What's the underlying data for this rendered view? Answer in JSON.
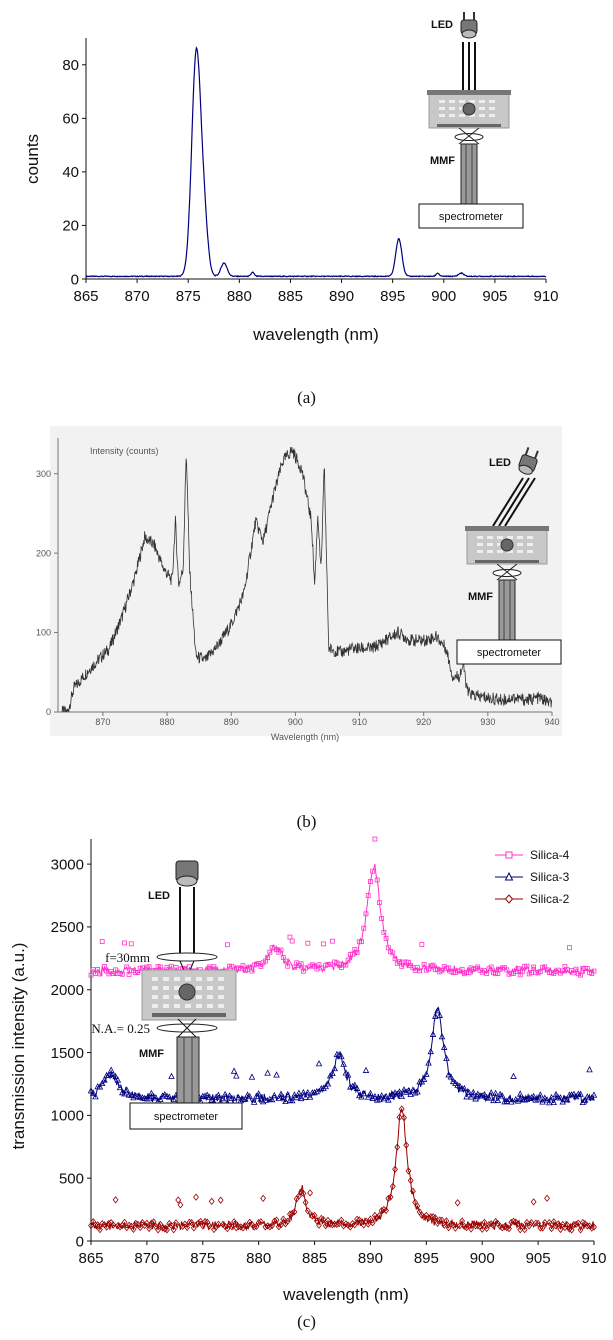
{
  "chart_data": [
    {
      "id": "a",
      "type": "line",
      "caption": "(a)",
      "xlabel": "wavelength (nm)",
      "ylabel": "counts",
      "xlim": [
        865,
        910
      ],
      "ylim": [
        0,
        90
      ],
      "xticks": [
        865,
        870,
        875,
        880,
        885,
        890,
        895,
        900,
        905,
        910
      ],
      "yticks": [
        0,
        20,
        40,
        60,
        80
      ],
      "color": "#000080",
      "baseline": 1,
      "peaks": [
        {
          "x": 875.8,
          "y": 84,
          "w": 0.45
        },
        {
          "x": 876.6,
          "y": 16,
          "w": 0.35
        },
        {
          "x": 878.5,
          "y": 5,
          "w": 0.3
        },
        {
          "x": 881.3,
          "y": 1.5,
          "w": 0.15
        },
        {
          "x": 895.6,
          "y": 14,
          "w": 0.3
        },
        {
          "x": 899.4,
          "y": 1.2,
          "w": 0.15
        },
        {
          "x": 901.7,
          "y": 1.2,
          "w": 0.25
        }
      ],
      "inset": {
        "led_label": "LED",
        "fiber_label": "MMF",
        "box_label": "spectrometer"
      }
    },
    {
      "id": "b",
      "type": "line",
      "caption": "(b)",
      "xlabel": "Wavelength (nm)",
      "ylabel": "Intensity (counts)",
      "xlim": [
        863,
        940
      ],
      "ylim": [
        0,
        345
      ],
      "xticks": [
        870,
        880,
        890,
        900,
        910,
        920,
        930,
        940
      ],
      "yticks": [
        0,
        100,
        200,
        300
      ],
      "color": "#333333",
      "points": [
        [
          863.5,
          0
        ],
        [
          864.5,
          0
        ],
        [
          865.5,
          30
        ],
        [
          868,
          55
        ],
        [
          871,
          80
        ],
        [
          873,
          120
        ],
        [
          875,
          170
        ],
        [
          876.5,
          220
        ],
        [
          878,
          210
        ],
        [
          879.5,
          180
        ],
        [
          880.8,
          165
        ],
        [
          881.3,
          240
        ],
        [
          881.8,
          160
        ],
        [
          882.5,
          180
        ],
        [
          883,
          330
        ],
        [
          883.5,
          180
        ],
        [
          884.5,
          70
        ],
        [
          886,
          65
        ],
        [
          888,
          85
        ],
        [
          890,
          110
        ],
        [
          892,
          150
        ],
        [
          893.8,
          240
        ],
        [
          895,
          215
        ],
        [
          896.5,
          270
        ],
        [
          898,
          315
        ],
        [
          899.5,
          330
        ],
        [
          901,
          305
        ],
        [
          902.5,
          240
        ],
        [
          903,
          160
        ],
        [
          903.5,
          250
        ],
        [
          904,
          175
        ],
        [
          904.5,
          310
        ],
        [
          905.2,
          80
        ],
        [
          907,
          75
        ],
        [
          909,
          80
        ],
        [
          912,
          80
        ],
        [
          914,
          90
        ],
        [
          916,
          100
        ],
        [
          918,
          90
        ],
        [
          920,
          90
        ],
        [
          922,
          95
        ],
        [
          923.5,
          80
        ],
        [
          924.5,
          45
        ],
        [
          925.5,
          45
        ],
        [
          926.2,
          60
        ],
        [
          926.8,
          25
        ],
        [
          928,
          20
        ],
        [
          930,
          18
        ],
        [
          932,
          15
        ],
        [
          934,
          18
        ],
        [
          936,
          15
        ],
        [
          938,
          18
        ],
        [
          940,
          10
        ]
      ],
      "inset": {
        "led_label": "LED",
        "fiber_label": "MMF",
        "box_label": "spectrometer"
      }
    },
    {
      "id": "c",
      "type": "line",
      "caption": "(c)",
      "xlabel": "wavelength (nm)",
      "ylabel": "transmission intensity (a.u.)",
      "xlim": [
        865,
        910
      ],
      "ylim": [
        0,
        3200
      ],
      "xticks": [
        865,
        870,
        875,
        880,
        885,
        890,
        895,
        900,
        905,
        910
      ],
      "yticks": [
        0,
        500,
        1000,
        1500,
        2000,
        2500,
        3000
      ],
      "series": [
        {
          "name": "Silica-4",
          "color": "#ff33cc",
          "marker": "square",
          "baseline": 2150,
          "peaks": [
            {
              "x": 881.5,
              "y": 180,
              "w": 0.8
            },
            {
              "x": 890.3,
              "y": 830,
              "w": 0.75
            }
          ]
        },
        {
          "name": "Silica-3",
          "color": "#000080",
          "marker": "triangle",
          "baseline": 1130,
          "peaks": [
            {
              "x": 866.8,
              "y": 200,
              "w": 0.8
            },
            {
              "x": 887.2,
              "y": 350,
              "w": 0.7
            },
            {
              "x": 896,
              "y": 720,
              "w": 0.65
            }
          ]
        },
        {
          "name": "Silica-2",
          "color": "#990000",
          "marker": "diamond",
          "baseline": 120,
          "peaks": [
            {
              "x": 883.8,
              "y": 300,
              "w": 0.5
            },
            {
              "x": 892.8,
              "y": 930,
              "w": 0.6
            }
          ]
        }
      ],
      "inset": {
        "led_label": "LED",
        "lens_label": "f=30mm",
        "na_label": "N.A.= 0.25",
        "fiber_label": "MMF",
        "box_label": "spectrometer"
      }
    }
  ]
}
